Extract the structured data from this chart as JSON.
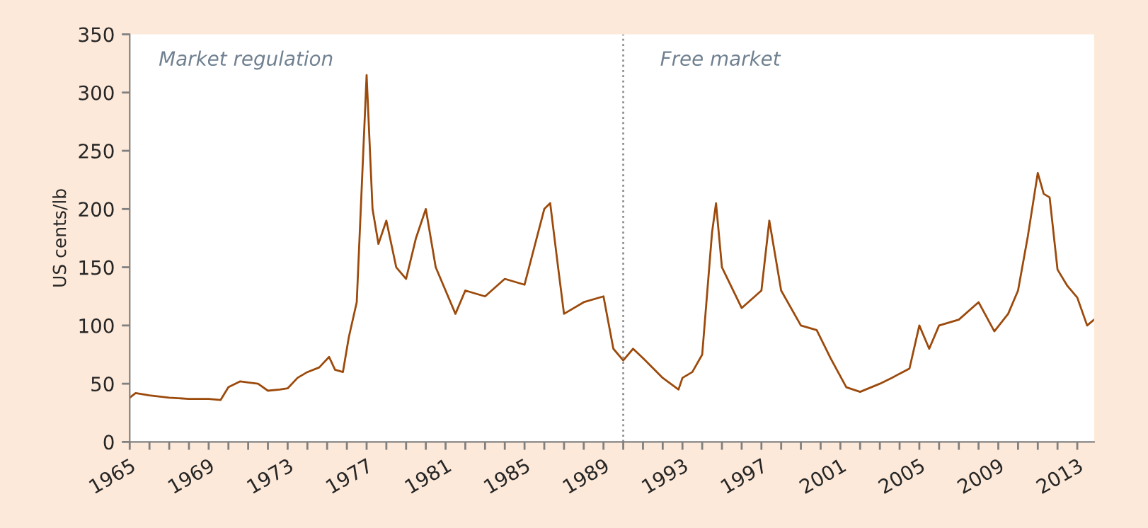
{
  "chart_data": {
    "type": "line",
    "ylabel": "US cents/lb",
    "annotations": [
      "Market regulation",
      "Free market"
    ],
    "x": [
      1965,
      1965.3,
      1966,
      1967,
      1968,
      1969,
      1969.6,
      1970,
      1970.6,
      1971,
      1971.5,
      1972,
      1972.6,
      1973,
      1973.5,
      1974,
      1974.6,
      1975.1,
      1975.4,
      1975.8,
      1976.1,
      1976.5,
      1977,
      1977.3,
      1977.6,
      1978,
      1978.5,
      1979,
      1979.5,
      1980,
      1980.5,
      1981,
      1981.5,
      1982,
      1983,
      1984,
      1985,
      1986,
      1986.3,
      1986.7,
      1987,
      1988,
      1989,
      1989.5,
      1990,
      1990.5,
      1991,
      1992,
      1992.8,
      1993,
      1993.5,
      1994,
      1994.5,
      1994.7,
      1995,
      1996,
      1997,
      1997.4,
      1998,
      1999,
      1999.8,
      2000.5,
      2001.3,
      2002,
      2003,
      2003.6,
      2004.5,
      2005,
      2005.5,
      2006,
      2007,
      2008,
      2008.8,
      2009.5,
      2010,
      2010.5,
      2011,
      2011.3,
      2011.6,
      2012,
      2012.5,
      2013,
      2013.5,
      2013.85
    ],
    "series": [
      {
        "color": "#9c4a0c",
        "values": [
          38,
          42,
          40,
          38,
          37,
          37,
          36,
          47,
          52,
          51,
          50,
          44,
          45,
          46,
          55,
          60,
          64,
          73,
          62,
          60,
          90,
          120,
          315,
          200,
          170,
          190,
          150,
          140,
          175,
          200,
          150,
          130,
          110,
          130,
          125,
          140,
          135,
          200,
          205,
          150,
          110,
          120,
          125,
          80,
          70,
          80,
          72,
          55,
          45,
          55,
          60,
          75,
          180,
          205,
          150,
          115,
          130,
          190,
          130,
          100,
          96,
          72,
          47,
          43,
          50,
          55,
          63,
          100,
          80,
          100,
          105,
          120,
          95,
          110,
          130,
          177,
          231,
          213,
          210,
          148,
          134,
          124,
          100,
          105
        ]
      }
    ],
    "xlim": [
      1965,
      2013.85
    ],
    "ylim": [
      0,
      350
    ],
    "yticks": [
      0,
      50,
      100,
      150,
      200,
      250,
      300,
      350
    ],
    "xticks": [
      {
        "value": 1965,
        "label": "1965"
      },
      {
        "value": 1966,
        "label": null
      },
      {
        "value": 1967,
        "label": null
      },
      {
        "value": 1968,
        "label": null
      },
      {
        "value": 1969,
        "label": "1969"
      },
      {
        "value": 1970,
        "label": null
      },
      {
        "value": 1971,
        "label": null
      },
      {
        "value": 1972,
        "label": null
      },
      {
        "value": 1973,
        "label": "1973"
      },
      {
        "value": 1974,
        "label": null
      },
      {
        "value": 1975,
        "label": null
      },
      {
        "value": 1976,
        "label": null
      },
      {
        "value": 1977,
        "label": "1977"
      },
      {
        "value": 1978,
        "label": null
      },
      {
        "value": 1979,
        "label": null
      },
      {
        "value": 1980,
        "label": null
      },
      {
        "value": 1981,
        "label": "1981"
      },
      {
        "value": 1982,
        "label": null
      },
      {
        "value": 1983,
        "label": null
      },
      {
        "value": 1984,
        "label": null
      },
      {
        "value": 1985,
        "label": "1985"
      },
      {
        "value": 1986,
        "label": null
      },
      {
        "value": 1987,
        "label": null
      },
      {
        "value": 1988,
        "label": null
      },
      {
        "value": 1989,
        "label": "1989"
      },
      {
        "value": 1990,
        "label": null
      },
      {
        "value": 1991,
        "label": null
      },
      {
        "value": 1992,
        "label": null
      },
      {
        "value": 1993,
        "label": "1993"
      },
      {
        "value": 1994,
        "label": null
      },
      {
        "value": 1995,
        "label": null
      },
      {
        "value": 1996,
        "label": null
      },
      {
        "value": 1997,
        "label": "1997"
      },
      {
        "value": 1998,
        "label": null
      },
      {
        "value": 1999,
        "label": null
      },
      {
        "value": 2000,
        "label": null
      },
      {
        "value": 2001,
        "label": "2001"
      },
      {
        "value": 2002,
        "label": null
      },
      {
        "value": 2003,
        "label": null
      },
      {
        "value": 2004,
        "label": null
      },
      {
        "value": 2005,
        "label": "2005"
      },
      {
        "value": 2006,
        "label": null
      },
      {
        "value": 2007,
        "label": null
      },
      {
        "value": 2008,
        "label": null
      },
      {
        "value": 2009,
        "label": "2009"
      },
      {
        "value": 2010,
        "label": null
      },
      {
        "value": 2011,
        "label": null
      },
      {
        "value": 2012,
        "label": null
      },
      {
        "value": 2013,
        "label": "2013"
      }
    ],
    "ref_lines": [
      {
        "axis": "x",
        "value": 1990,
        "color": "#909090",
        "line_style": "dotted"
      }
    ],
    "grid": false,
    "legend": false
  }
}
